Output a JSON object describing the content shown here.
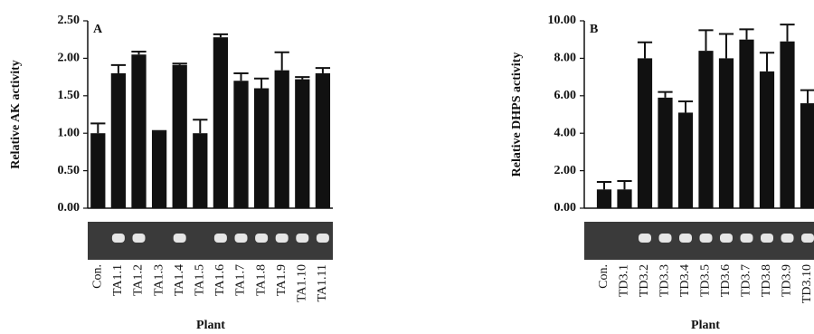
{
  "chart_data": [
    {
      "type": "bar",
      "panel": "A",
      "ylabel": "Relative AK activity",
      "xlabel": "Plant",
      "categories": [
        "Con.",
        "TA1.1",
        "TA1.2",
        "TA1.3",
        "TA1.4",
        "TA1.5",
        "TA1.6",
        "TA1.7",
        "TA1.8",
        "TA1.9",
        "TA1.10",
        "TA1.11"
      ],
      "values": [
        1.0,
        1.8,
        2.05,
        1.02,
        1.91,
        1.0,
        2.28,
        1.7,
        1.6,
        1.84,
        1.72,
        1.8
      ],
      "errors": [
        0.13,
        0.11,
        0.04,
        0.01,
        0.02,
        0.18,
        0.04,
        0.1,
        0.13,
        0.24,
        0.03,
        0.07
      ],
      "color": "#111111",
      "ylim": [
        0,
        2.5
      ],
      "yticks": [
        {
          "value": 0,
          "label": "0.00"
        },
        {
          "value": 0.5,
          "label": "0.50"
        },
        {
          "value": 1,
          "label": "1.00"
        },
        {
          "value": 1.5,
          "label": "1.50"
        },
        {
          "value": 2,
          "label": "2.00"
        },
        {
          "value": 2.5,
          "label": "2.50"
        }
      ]
    },
    {
      "type": "bar",
      "panel": "B",
      "ylabel": "Relative DHPS activity",
      "xlabel": "Plant",
      "categories": [
        "Con.",
        "TD3.1",
        "TD3.2",
        "TD3.3",
        "TD3.4",
        "TD3.5",
        "TD3.6",
        "TD3.7",
        "TD3.8",
        "TD3.9",
        "TD3.10"
      ],
      "values": [
        1.0,
        1.0,
        8.0,
        5.9,
        5.1,
        8.4,
        8.0,
        9.0,
        7.3,
        8.9,
        5.6
      ],
      "errors": [
        0.4,
        0.45,
        0.85,
        0.3,
        0.6,
        1.1,
        1.3,
        0.55,
        1.0,
        0.9,
        0.7
      ],
      "color": "#111111",
      "ylim": [
        0,
        10
      ],
      "yticks": [
        {
          "value": 0,
          "label": "0.00"
        },
        {
          "value": 2,
          "label": "2.00"
        },
        {
          "value": 4,
          "label": "4.00"
        },
        {
          "value": 6,
          "label": "6.00"
        },
        {
          "value": 8,
          "label": "8.00"
        },
        {
          "value": 10,
          "label": "10.00"
        }
      ]
    }
  ]
}
